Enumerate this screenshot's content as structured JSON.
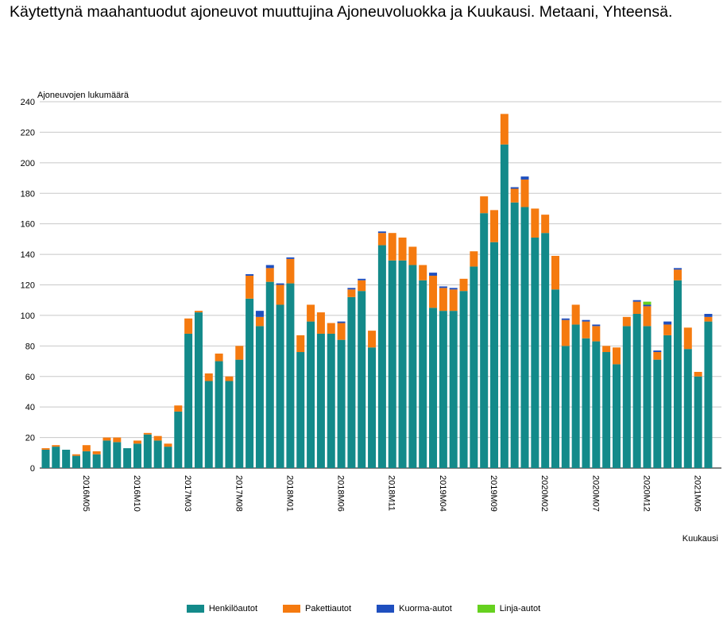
{
  "title": "Käytettynä maahantuodut ajoneuvot muuttujina Ajoneuvoluokka ja Kuukausi. Metaani, Yhteensä.",
  "chart_data": {
    "type": "bar",
    "stacked": true,
    "ylabel": "Ajoneuvojen lukumäärä",
    "xlabel": "Kuukausi",
    "ylim": [
      0,
      240
    ],
    "yticks": [
      0,
      20,
      40,
      60,
      80,
      100,
      120,
      140,
      160,
      180,
      200,
      220,
      240
    ],
    "grid": true,
    "legend_position": "bottom",
    "x_tick_labels": [
      {
        "index": 4,
        "label": "2016M05"
      },
      {
        "index": 9,
        "label": "2016M10"
      },
      {
        "index": 14,
        "label": "2017M03"
      },
      {
        "index": 19,
        "label": "2017M08"
      },
      {
        "index": 24,
        "label": "2018M01"
      },
      {
        "index": 29,
        "label": "2018M06"
      },
      {
        "index": 34,
        "label": "2018M11"
      },
      {
        "index": 39,
        "label": "2019M04"
      },
      {
        "index": 44,
        "label": "2019M09"
      },
      {
        "index": 49,
        "label": "2020M02"
      },
      {
        "index": 54,
        "label": "2020M07"
      },
      {
        "index": 59,
        "label": "2020M12"
      },
      {
        "index": 64,
        "label": "2021M05"
      }
    ],
    "categories": [
      "2016M01",
      "2016M02",
      "2016M03",
      "2016M04",
      "2016M05",
      "2016M06",
      "2016M07",
      "2016M08",
      "2016M09",
      "2016M10",
      "2016M11",
      "2016M12",
      "2017M01",
      "2017M02",
      "2017M03",
      "2017M04",
      "2017M05",
      "2017M06",
      "2017M07",
      "2017M08",
      "2017M09",
      "2017M10",
      "2017M11",
      "2017M12",
      "2018M01",
      "2018M02",
      "2018M03",
      "2018M04",
      "2018M05",
      "2018M06",
      "2018M07",
      "2018M08",
      "2018M09",
      "2018M10",
      "2018M11",
      "2018M12",
      "2019M01",
      "2019M02",
      "2019M03",
      "2019M04",
      "2019M05",
      "2019M06",
      "2019M07",
      "2019M08",
      "2019M09",
      "2019M10",
      "2019M11",
      "2019M12",
      "2020M01",
      "2020M02",
      "2020M03",
      "2020M04",
      "2020M05",
      "2020M06",
      "2020M07",
      "2020M08",
      "2020M09",
      "2020M10",
      "2020M11",
      "2020M12",
      "2021M01",
      "2021M02",
      "2021M03",
      "2021M04",
      "2021M05",
      "2021M06"
    ],
    "series": [
      {
        "name": "Henkilöautot",
        "color": "#138a8a",
        "values": [
          12,
          14,
          12,
          8,
          11,
          9,
          18,
          17,
          13,
          16,
          22,
          18,
          14,
          37,
          88,
          102,
          57,
          70,
          57,
          71,
          111,
          93,
          122,
          107,
          121,
          76,
          96,
          88,
          88,
          84,
          112,
          116,
          79,
          146,
          136,
          136,
          133,
          123,
          105,
          103,
          103,
          116,
          132,
          167,
          148,
          212,
          174,
          171,
          151,
          154,
          117,
          80,
          94,
          85,
          83,
          76,
          68,
          93,
          101,
          93,
          71,
          87,
          123,
          78,
          60,
          96
        ]
      },
      {
        "name": "Pakettiautot",
        "color": "#f57a0f",
        "values": [
          1,
          1,
          0,
          1,
          4,
          2,
          2,
          3,
          0,
          2,
          1,
          3,
          2,
          4,
          10,
          1,
          5,
          5,
          3,
          9,
          15,
          6,
          9,
          13,
          16,
          11,
          11,
          14,
          7,
          11,
          5,
          7,
          11,
          8,
          18,
          15,
          12,
          10,
          21,
          15,
          14,
          8,
          10,
          11,
          21,
          20,
          9,
          18,
          19,
          12,
          22,
          17,
          13,
          11,
          10,
          4,
          11,
          6,
          8,
          13,
          5,
          7,
          7,
          14,
          3,
          3
        ]
      },
      {
        "name": "Kuorma-autot",
        "color": "#1f4fbf",
        "values": [
          0,
          0,
          0,
          0,
          0,
          0,
          0,
          0,
          0,
          0,
          0,
          0,
          0,
          0,
          0,
          0,
          0,
          0,
          0,
          0,
          1,
          4,
          2,
          1,
          1,
          0,
          0,
          0,
          0,
          1,
          1,
          1,
          0,
          1,
          0,
          0,
          0,
          0,
          2,
          1,
          1,
          0,
          0,
          0,
          0,
          0,
          1,
          2,
          0,
          0,
          0,
          1,
          0,
          1,
          1,
          0,
          0,
          0,
          1,
          1,
          1,
          2,
          1,
          0,
          0,
          2
        ]
      },
      {
        "name": "Linja-autot",
        "color": "#66d11f",
        "values": [
          0,
          0,
          0,
          0,
          0,
          0,
          0,
          0,
          0,
          0,
          0,
          0,
          0,
          0,
          0,
          0,
          0,
          0,
          0,
          0,
          0,
          0,
          0,
          0,
          0,
          0,
          0,
          0,
          0,
          0,
          0,
          0,
          0,
          0,
          0,
          0,
          0,
          0,
          0,
          0,
          0,
          0,
          0,
          0,
          0,
          0,
          0,
          0,
          0,
          0,
          0,
          0,
          0,
          0,
          0,
          0,
          0,
          0,
          0,
          2,
          0,
          0,
          0,
          0,
          0,
          0
        ]
      }
    ]
  }
}
